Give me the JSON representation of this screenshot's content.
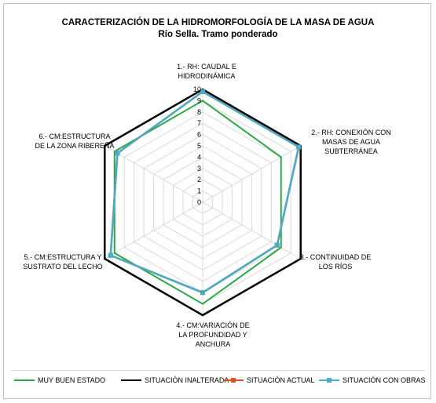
{
  "chart_data": {
    "type": "radar",
    "title": "CARACTERIZACIÓN DE LA HIDROMORFOLOGÍA DE LA MASA DE AGUA",
    "subtitle": "Río Sella. Tramo ponderado",
    "axes": [
      [
        "1.- RH: CAUDAL E",
        "HIDRODINÁMICA"
      ],
      [
        "2.- RH: CONEXIÓN CON",
        "MASAS DE AGUA",
        "SUBTERRÁNEA"
      ],
      [
        "3.- CONTINUIDAD DE",
        "LOS RÍOS"
      ],
      [
        "4.- CM:VARIACIÓN DE",
        "LA PROFUNDIDAD Y",
        "ANCHURA"
      ],
      [
        "5.- CM:ESTRUCTURA Y",
        "SUSTRATO DEL LECHO"
      ],
      [
        "6.- CM:ESTRUCTURA",
        "DE LA ZONA RIBEREÑA"
      ]
    ],
    "rlim": [
      0,
      10
    ],
    "ticks": [
      "0",
      "1",
      "2",
      "3",
      "4",
      "5",
      "6",
      "7",
      "8",
      "9",
      "10"
    ],
    "grid": true,
    "legend_position": "bottom",
    "series": [
      {
        "name": "MUY BUEN ESTADO",
        "color": "#2ca84a",
        "marker": "none",
        "values": [
          9,
          8,
          8,
          9,
          9,
          9
        ]
      },
      {
        "name": "SITUACIÓN INALTERADA",
        "color": "#000000",
        "marker": "none",
        "values": [
          10,
          10,
          10,
          10,
          10,
          10
        ]
      },
      {
        "name": "SITUACIÓN ACTUAL",
        "color": "#d9531e",
        "marker": "square",
        "values": [
          9.8,
          9.8,
          7.6,
          8,
          9.4,
          8.7
        ]
      },
      {
        "name": "SITUACIÓN CON OBRAS",
        "color": "#4bacc6",
        "marker": "square",
        "values": [
          9.8,
          9.8,
          7.6,
          8,
          9.4,
          8.7
        ]
      }
    ]
  }
}
